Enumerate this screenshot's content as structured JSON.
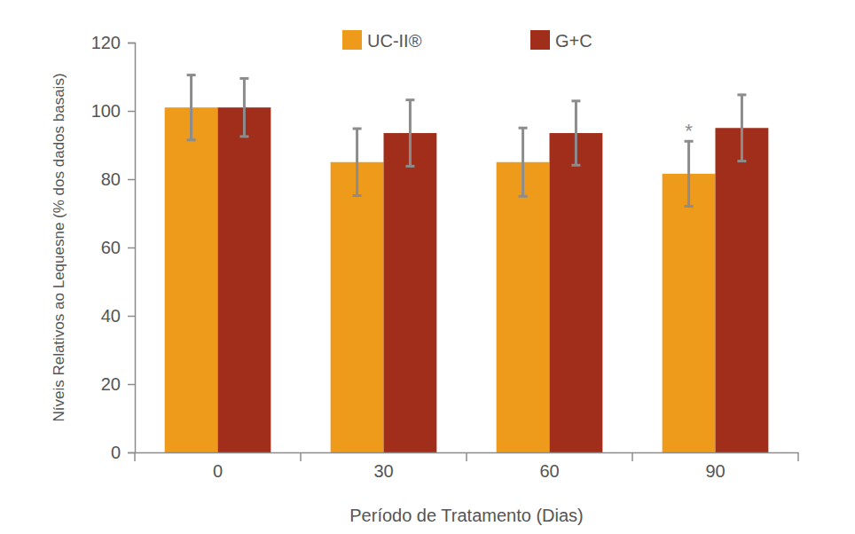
{
  "chart_data": {
    "type": "bar",
    "x_label": "Período de Tratamento (Dias)",
    "y_label": "Níveis Relativos ao Lequesne (% dos dados basais)",
    "categories": [
      "0",
      "30",
      "60",
      "90"
    ],
    "series": [
      {
        "name": "UC-II®",
        "color": "#ee9a1a",
        "values": [
          101,
          85,
          85,
          81.6
        ],
        "errors": [
          9.5,
          9.8,
          10,
          9.5
        ]
      },
      {
        "name": "G+C",
        "color": "#a02e1b",
        "values": [
          101,
          93.5,
          93.5,
          95
        ],
        "errors": [
          8.5,
          9.7,
          9.4,
          9.7
        ]
      }
    ],
    "annotations": [
      {
        "text": "*",
        "category": "90",
        "series": "UC-II®"
      }
    ],
    "ylim": [
      0,
      120
    ],
    "yticks": [
      0,
      20,
      40,
      60,
      80,
      100,
      120
    ],
    "grid": false,
    "legend": "top"
  }
}
